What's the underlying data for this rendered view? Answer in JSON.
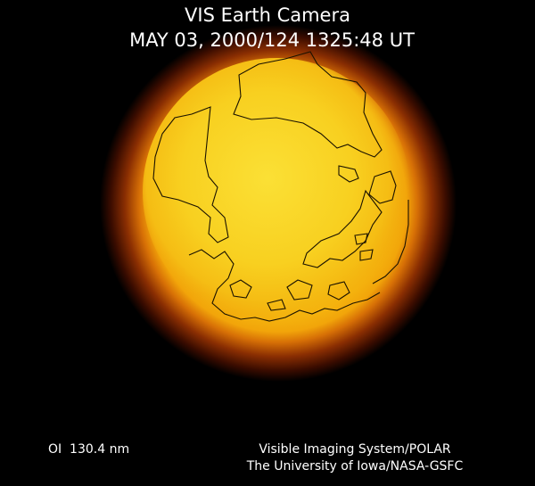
{
  "header": {
    "title": "VIS Earth Camera",
    "subtitle": "MAY 03, 2000/124 1325:48 UT"
  },
  "footer": {
    "filter": "OI  130.4 nm",
    "credit_line1": "Visible Imaging System/POLAR",
    "credit_line2": "The University of Iowa/NASA-GSFC"
  }
}
